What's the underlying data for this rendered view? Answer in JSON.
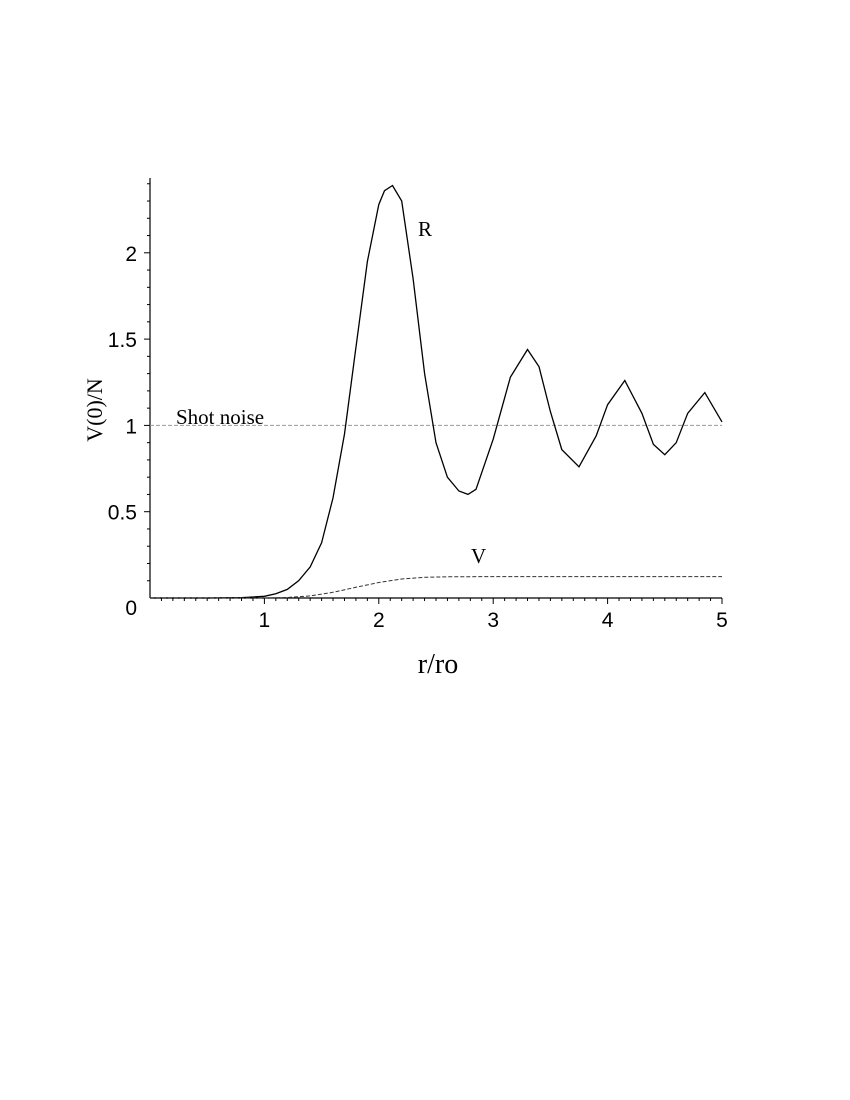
{
  "chart_data": {
    "type": "line",
    "xlabel": "r/ro",
    "ylabel": "V(0)/N",
    "xlim": [
      0,
      5
    ],
    "ylim": [
      0,
      2.45
    ],
    "x_ticks": [
      "1",
      "2",
      "3",
      "4",
      "5"
    ],
    "x_tick_values": [
      1,
      2,
      3,
      4,
      5
    ],
    "y_ticks": [
      "0",
      "0.5",
      "1",
      "1.5",
      "2"
    ],
    "y_tick_values": [
      0,
      0.5,
      1,
      1.5,
      2
    ],
    "grid": false,
    "reference_line": {
      "label": "Shot noise",
      "y": 1.0
    },
    "series": [
      {
        "name": "R",
        "line_style": "solid",
        "x": [
          0,
          0.5,
          0.8,
          1.0,
          1.1,
          1.2,
          1.3,
          1.4,
          1.5,
          1.6,
          1.7,
          1.8,
          1.9,
          2.0,
          2.05,
          2.12,
          2.2,
          2.3,
          2.4,
          2.5,
          2.6,
          2.7,
          2.78,
          2.85,
          3.0,
          3.15,
          3.3,
          3.4,
          3.5,
          3.6,
          3.75,
          3.9,
          4.0,
          4.15,
          4.3,
          4.4,
          4.5,
          4.6,
          4.7,
          4.85,
          5.0
        ],
        "y": [
          0,
          0,
          0.002,
          0.01,
          0.025,
          0.05,
          0.1,
          0.18,
          0.32,
          0.58,
          0.95,
          1.45,
          1.95,
          2.28,
          2.36,
          2.39,
          2.3,
          1.85,
          1.3,
          0.9,
          0.7,
          0.62,
          0.6,
          0.63,
          0.92,
          1.28,
          1.44,
          1.34,
          1.08,
          0.86,
          0.76,
          0.94,
          1.12,
          1.26,
          1.07,
          0.89,
          0.83,
          0.9,
          1.07,
          1.19,
          1.02
        ]
      },
      {
        "name": "V",
        "line_style": "dashed",
        "x": [
          0,
          1.0,
          1.2,
          1.4,
          1.6,
          1.8,
          2.0,
          2.2,
          2.4,
          2.6,
          3.0,
          4.0,
          5.0
        ],
        "y": [
          0,
          0,
          0.003,
          0.012,
          0.033,
          0.062,
          0.09,
          0.11,
          0.12,
          0.123,
          0.124,
          0.124,
          0.124
        ]
      }
    ],
    "annotations": [
      "R",
      "V"
    ]
  }
}
